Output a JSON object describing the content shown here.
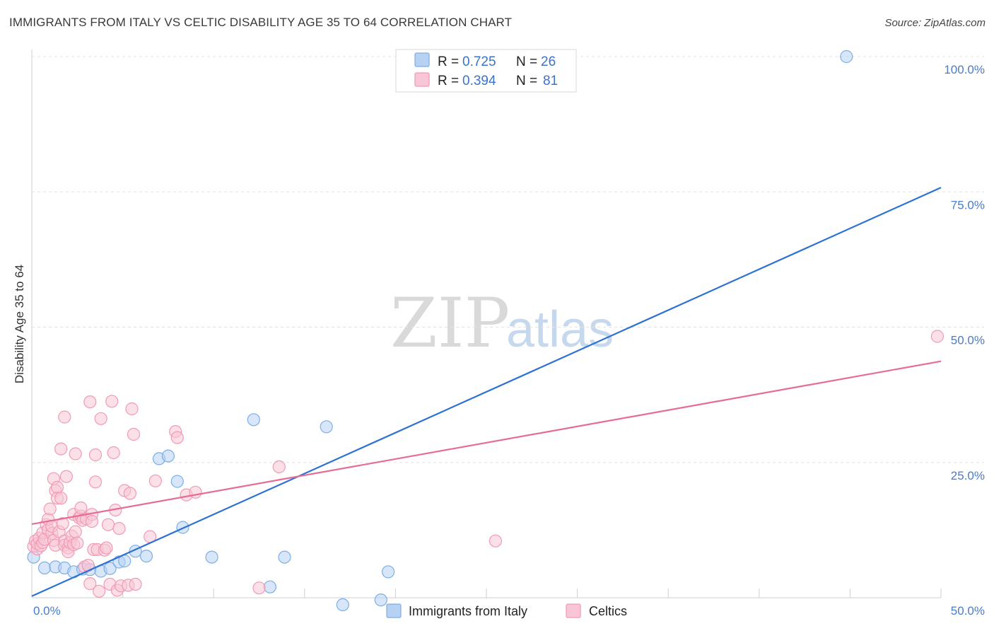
{
  "title": "IMMIGRANTS FROM ITALY VS CELTIC DISABILITY AGE 35 TO 64 CORRELATION CHART",
  "source": "Source: ZipAtlas.com",
  "watermark": {
    "zip": "ZIP",
    "atlas": "atlas"
  },
  "legend": {
    "r_label": "R =",
    "n_label": "N =",
    "rows": [
      {
        "r": "0.725",
        "n": "26"
      },
      {
        "r": "0.394",
        "n": "81"
      }
    ]
  },
  "chart_data": {
    "type": "scatter",
    "title": "IMMIGRANTS FROM ITALY VS CELTIC DISABILITY AGE 35 TO 64 CORRELATION CHART",
    "xlabel": "",
    "ylabel": "Disability Age 35 to 64",
    "xlim": [
      0,
      50
    ],
    "ylim": [
      0,
      100
    ],
    "x_tick_labels": [
      {
        "value": 0,
        "label": "0.0%"
      },
      {
        "value": 50,
        "label": "50.0%"
      }
    ],
    "y_tick_labels": [
      {
        "value": 100,
        "label": "100.0%"
      },
      {
        "value": 75,
        "label": "75.0%"
      },
      {
        "value": 50,
        "label": "50.0%"
      },
      {
        "value": 25,
        "label": "25.0%"
      }
    ],
    "series": [
      {
        "name": "Immigrants from Italy",
        "color": "#7eaee6",
        "fill": "#b7d1f2",
        "line_color": "#2d72d2",
        "trend": {
          "x0": 0,
          "y0": 0.3,
          "x1": 50,
          "y1": 75.8
        },
        "points": [
          [
            0.1,
            7.5
          ],
          [
            0.7,
            5.5
          ],
          [
            1.3,
            5.7
          ],
          [
            1.8,
            5.5
          ],
          [
            2.3,
            4.8
          ],
          [
            2.8,
            5.3
          ],
          [
            3.2,
            5.2
          ],
          [
            3.8,
            4.9
          ],
          [
            4.3,
            5.4
          ],
          [
            4.8,
            6.6
          ],
          [
            5.1,
            6.8
          ],
          [
            5.7,
            8.6
          ],
          [
            6.3,
            7.7
          ],
          [
            7.0,
            25.7
          ],
          [
            7.5,
            26.2
          ],
          [
            8.0,
            21.5
          ],
          [
            8.3,
            13.0
          ],
          [
            9.9,
            7.5
          ],
          [
            12.2,
            32.9
          ],
          [
            13.1,
            2.0
          ],
          [
            13.9,
            7.5
          ],
          [
            16.2,
            31.6
          ],
          [
            17.1,
            -1.3
          ],
          [
            19.2,
            -0.4
          ],
          [
            19.6,
            4.8
          ],
          [
            44.8,
            100.0
          ]
        ]
      },
      {
        "name": "Celtics",
        "color": "#f19ab5",
        "fill": "#f8c6d6",
        "line_color": "#e56c96",
        "trend": {
          "x0": 0,
          "y0": 13.6,
          "x1": 50,
          "y1": 43.7
        },
        "points": [
          [
            0.1,
            9.5
          ],
          [
            0.2,
            10.5
          ],
          [
            0.3,
            9.0
          ],
          [
            0.3,
            10.0
          ],
          [
            0.4,
            11.0
          ],
          [
            0.5,
            9.6
          ],
          [
            0.6,
            10.2
          ],
          [
            0.6,
            12.0
          ],
          [
            0.7,
            10.8
          ],
          [
            0.8,
            13.5
          ],
          [
            0.9,
            12.6
          ],
          [
            0.9,
            14.5
          ],
          [
            1.0,
            16.4
          ],
          [
            1.1,
            11.9
          ],
          [
            1.1,
            13.2
          ],
          [
            1.2,
            10.6
          ],
          [
            1.2,
            22.0
          ],
          [
            1.3,
            9.7
          ],
          [
            1.3,
            19.8
          ],
          [
            1.4,
            20.4
          ],
          [
            1.4,
            18.4
          ],
          [
            1.5,
            12.2
          ],
          [
            1.6,
            18.4
          ],
          [
            1.6,
            27.5
          ],
          [
            1.7,
            13.7
          ],
          [
            1.8,
            10.5
          ],
          [
            1.8,
            9.7
          ],
          [
            1.8,
            33.4
          ],
          [
            1.9,
            22.4
          ],
          [
            2.0,
            9.2
          ],
          [
            2.0,
            8.5
          ],
          [
            2.1,
            10.2
          ],
          [
            2.2,
            11.4
          ],
          [
            2.3,
            15.4
          ],
          [
            2.3,
            9.8
          ],
          [
            2.4,
            12.2
          ],
          [
            2.4,
            26.6
          ],
          [
            2.5,
            10.1
          ],
          [
            2.6,
            14.8
          ],
          [
            2.7,
            15.1
          ],
          [
            2.7,
            16.6
          ],
          [
            2.8,
            14.3
          ],
          [
            2.9,
            5.7
          ],
          [
            3.0,
            14.6
          ],
          [
            3.1,
            6.0
          ],
          [
            3.2,
            2.6
          ],
          [
            3.2,
            36.2
          ],
          [
            3.3,
            15.4
          ],
          [
            3.4,
            8.9
          ],
          [
            3.5,
            21.4
          ],
          [
            3.5,
            26.4
          ],
          [
            3.6,
            8.9
          ],
          [
            3.7,
            1.2
          ],
          [
            3.8,
            33.1
          ],
          [
            4.0,
            8.8
          ],
          [
            4.2,
            13.5
          ],
          [
            4.3,
            2.5
          ],
          [
            4.4,
            36.3
          ],
          [
            4.5,
            26.8
          ],
          [
            4.6,
            16.2
          ],
          [
            4.7,
            1.4
          ],
          [
            4.8,
            12.8
          ],
          [
            4.9,
            2.2
          ],
          [
            5.1,
            19.8
          ],
          [
            5.3,
            2.3
          ],
          [
            5.4,
            19.3
          ],
          [
            5.5,
            34.9
          ],
          [
            5.6,
            30.2
          ],
          [
            5.7,
            2.5
          ],
          [
            6.5,
            11.3
          ],
          [
            6.8,
            21.6
          ],
          [
            7.9,
            30.7
          ],
          [
            8.0,
            29.6
          ],
          [
            8.5,
            19.0
          ],
          [
            9.0,
            19.5
          ],
          [
            12.5,
            1.8
          ],
          [
            13.6,
            24.2
          ],
          [
            25.5,
            10.5
          ],
          [
            49.8,
            48.3
          ],
          [
            3.3,
            14.1
          ],
          [
            4.1,
            9.2
          ]
        ]
      }
    ]
  }
}
